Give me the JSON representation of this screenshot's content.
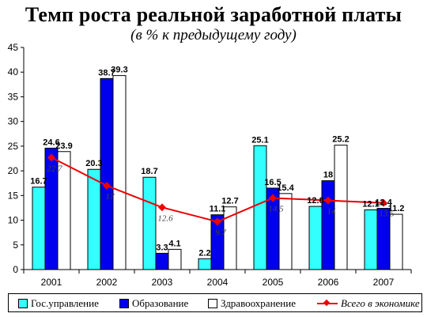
{
  "chart_data": {
    "type": "bar",
    "title": "Темп роста реальной заработной платы",
    "subtitle": "(в % к предыдущему году)",
    "categories": [
      "2001",
      "2002",
      "2003",
      "2004",
      "2005",
      "2006",
      "2007"
    ],
    "ylim": [
      0,
      45
    ],
    "yticks": [
      0,
      5,
      10,
      15,
      20,
      25,
      30,
      35,
      40,
      45
    ],
    "series": [
      {
        "name": "Гос.управление",
        "color": "#33ffff",
        "values": [
          16.7,
          20.3,
          18.7,
          2.2,
          25.1,
          12.8,
          12.1
        ],
        "labels": [
          "16.7",
          "20.3",
          "18.7",
          "2.2",
          "25.1",
          "12.8",
          "12.1"
        ]
      },
      {
        "name": "Образование",
        "color": "#0000ee",
        "values": [
          24.6,
          38.7,
          3.3,
          11.1,
          16.5,
          18,
          12.4
        ],
        "labels": [
          "24.6",
          "38.7",
          "3.3",
          "11.1",
          "16.5",
          "18",
          "12.4"
        ]
      },
      {
        "name": "Здравоохранение",
        "color": "#ffffff",
        "values": [
          23.9,
          39.3,
          4.1,
          12.7,
          15.4,
          25.2,
          11.2
        ],
        "labels": [
          "23.9",
          "39.3",
          "4.1",
          "12.7",
          "15.4",
          "25.2",
          "11.2"
        ]
      }
    ],
    "line_series": {
      "name": "Всего в экономике",
      "color": "#ee0000",
      "values": [
        22.7,
        17,
        12.6,
        9.7,
        14.5,
        14,
        13.5
      ],
      "labels": [
        "22.7",
        "17",
        "12.6",
        "9.7",
        "14.5",
        "14",
        "13.5"
      ]
    },
    "legend_position": "bottom"
  }
}
